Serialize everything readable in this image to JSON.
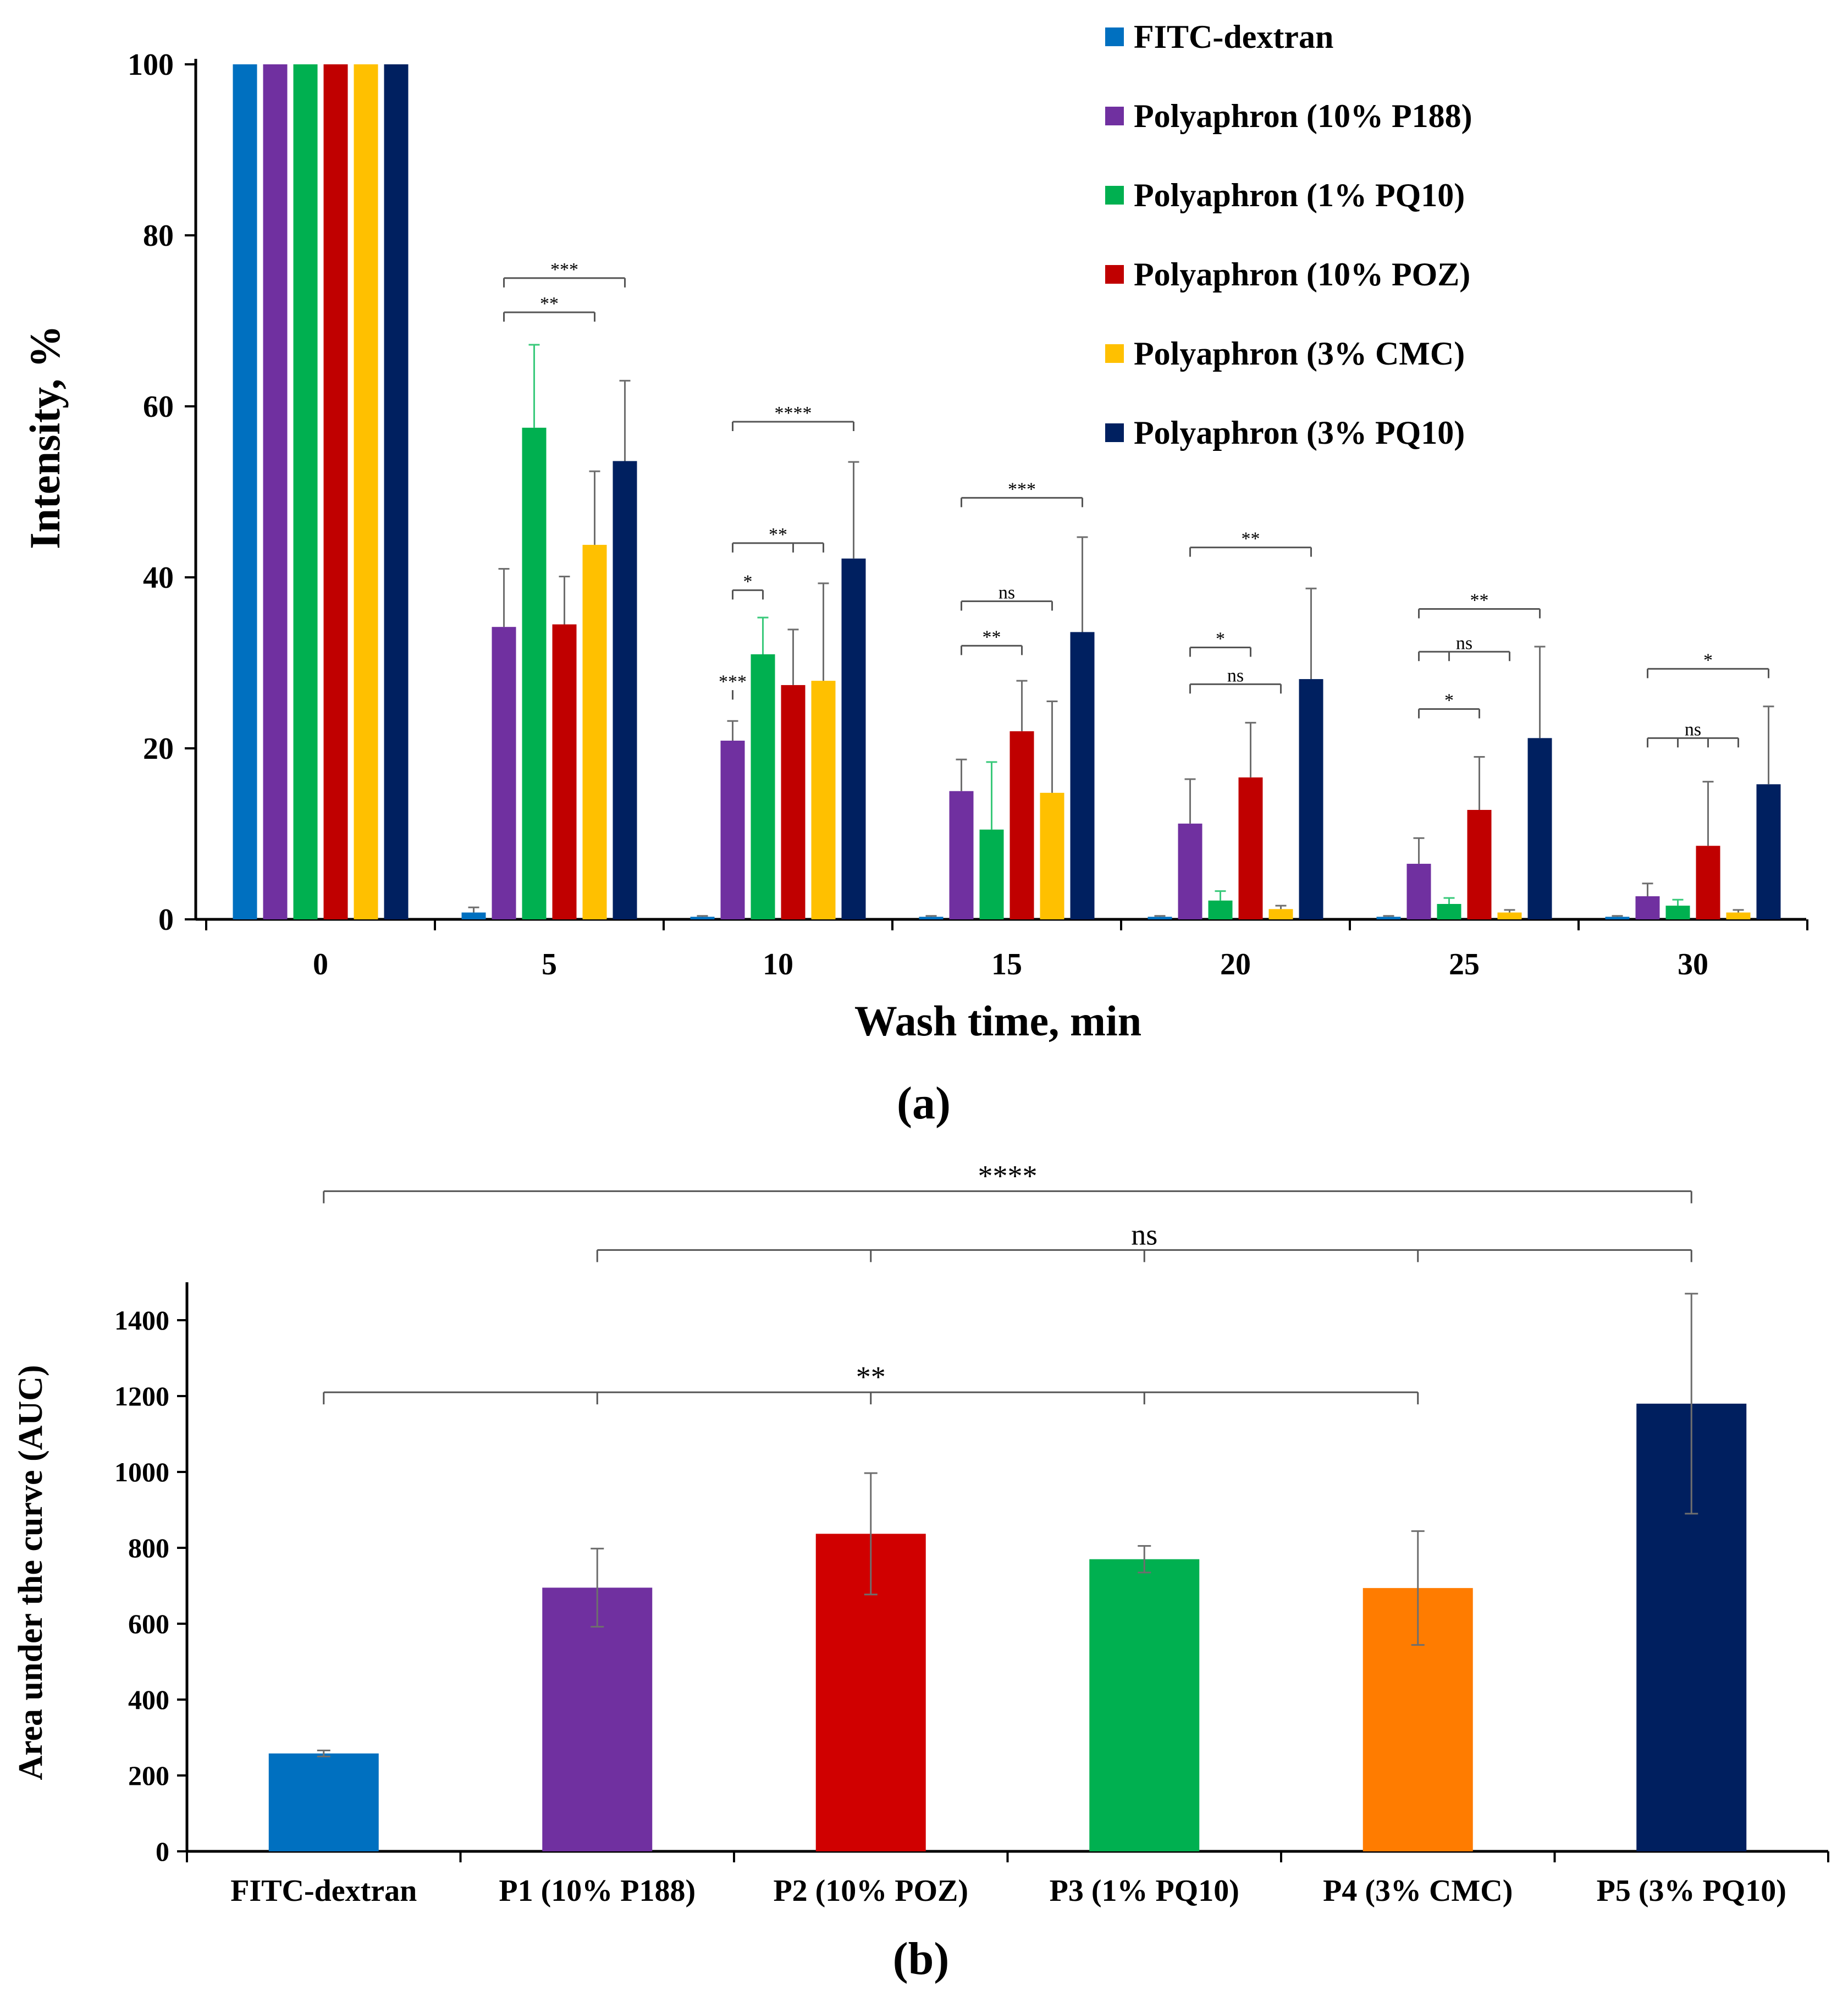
{
  "chart_data": [
    {
      "type": "bar",
      "panel_label": "(a)",
      "xlabel": "Wash time, min",
      "ylabel": "Intensity, %",
      "categories": [
        "0",
        "5",
        "10",
        "15",
        "20",
        "25",
        "30"
      ],
      "ylim": [
        0,
        100
      ],
      "yticks": [
        0,
        20,
        40,
        60,
        80,
        100
      ],
      "legend_position": "top-right",
      "series": [
        {
          "name": "FITC-dextran",
          "color": "#0070c0",
          "values": [
            100,
            0.8,
            0.3,
            0.3,
            0.3,
            0.3,
            0.3
          ],
          "errors": [
            0,
            0.6,
            0.1,
            0.1,
            0.1,
            0.1,
            0.1
          ]
        },
        {
          "name": "Polyaphron (10% P188)",
          "color": "#7030a0",
          "values": [
            100,
            34.2,
            20.9,
            15.0,
            11.2,
            6.5,
            2.7
          ],
          "errors": [
            0,
            6.8,
            2.3,
            3.7,
            5.2,
            3.0,
            1.5
          ]
        },
        {
          "name": "Polyaphron (1% PQ10)",
          "color": "#00b050",
          "values": [
            100,
            57.5,
            31.0,
            10.5,
            2.2,
            1.8,
            1.6
          ],
          "errors": [
            0,
            9.7,
            4.3,
            7.9,
            1.1,
            0.7,
            0.7
          ]
        },
        {
          "name": "Polyaphron (10% POZ)",
          "color": "#c00000",
          "values": [
            100,
            34.5,
            27.4,
            22.0,
            16.6,
            12.8,
            8.6
          ],
          "errors": [
            0,
            5.6,
            6.5,
            5.9,
            6.4,
            6.2,
            7.5
          ]
        },
        {
          "name": "Polyaphron (3% CMC)",
          "color": "#ffc000",
          "values": [
            100,
            43.8,
            27.9,
            14.8,
            1.2,
            0.8,
            0.8
          ],
          "errors": [
            0,
            8.6,
            11.4,
            10.7,
            0.4,
            0.3,
            0.3
          ]
        },
        {
          "name": "Polyaphron (3% PQ10)",
          "color": "#002060",
          "values": [
            100,
            53.6,
            42.2,
            33.6,
            28.1,
            21.2,
            15.8
          ],
          "errors": [
            0,
            9.4,
            11.3,
            11.1,
            10.6,
            10.7,
            9.1
          ]
        }
      ],
      "annotations": [
        {
          "label": "***",
          "group": "5",
          "from": 1,
          "to": [
            5
          ],
          "y": 75
        },
        {
          "label": "**",
          "group": "5",
          "from": 1,
          "to": [
            4
          ],
          "y": 71
        },
        {
          "label": "****",
          "group": "10",
          "from": 1,
          "to": [
            5
          ],
          "y": 58.2
        },
        {
          "label": "**",
          "group": "10",
          "from": 1,
          "to": [
            3,
            4
          ],
          "y": 44
        },
        {
          "label": "*",
          "group": "10",
          "from": 1,
          "to": [
            2
          ],
          "y": 38.5
        },
        {
          "label": "***",
          "group": "10",
          "from": 1,
          "to": [
            1
          ],
          "y": 26.8
        },
        {
          "label": "***",
          "group": "15",
          "from": 1,
          "to": [
            5
          ],
          "y": 49.3
        },
        {
          "label": "ns",
          "group": "15",
          "from": 1,
          "to": [
            4
          ],
          "y": 37.2
        },
        {
          "label": "**",
          "group": "15",
          "from": 1,
          "to": [
            3
          ],
          "y": 32
        },
        {
          "label": "**",
          "group": "20",
          "from": 1,
          "to": [
            5
          ],
          "y": 43.5
        },
        {
          "label": "*",
          "group": "20",
          "from": 1,
          "to": [
            3
          ],
          "y": 31.8
        },
        {
          "label": "ns",
          "group": "20",
          "from": 1,
          "to": [
            4
          ],
          "y": 27.5
        },
        {
          "label": "**",
          "group": "25",
          "from": 1,
          "to": [
            5
          ],
          "y": 36.3
        },
        {
          "label": "ns",
          "group": "25",
          "from": 1,
          "to": [
            2,
            4
          ],
          "y": 31.3
        },
        {
          "label": "*",
          "group": "25",
          "from": 1,
          "to": [
            3
          ],
          "y": 24.6
        },
        {
          "label": "*",
          "group": "30",
          "from": 1,
          "to": [
            5
          ],
          "y": 29.3
        },
        {
          "label": "ns",
          "group": "30",
          "from": 1,
          "to": [
            2,
            3,
            4
          ],
          "y": 21.2
        }
      ]
    },
    {
      "type": "bar",
      "panel_label": "(b)",
      "xlabel": "",
      "ylabel": "Area under the curve (AUC)",
      "categories": [
        "FITC-dextran",
        "P1 (10% P188)",
        "P2 (10% POZ)",
        "P3 (1% PQ10)",
        "P4 (3% CMC)",
        "P5 (3% PQ10)"
      ],
      "values": [
        258,
        695,
        837,
        770,
        694,
        1180
      ],
      "errors": [
        8,
        103,
        160,
        35,
        150,
        290
      ],
      "colors": [
        "#0070c0",
        "#7030a0",
        "#d00000",
        "#00b050",
        "#ff7c00",
        "#001f5f"
      ],
      "ylim": [
        0,
        1500
      ],
      "yticks": [
        0,
        200,
        400,
        600,
        800,
        1000,
        1200,
        1400
      ],
      "annotations": [
        {
          "label": "****",
          "from": 0,
          "to": [
            5
          ],
          "y": 1740
        },
        {
          "label": "ns",
          "from": 1,
          "to": [
            2,
            3,
            4,
            5
          ],
          "y": 1585
        },
        {
          "label": "**",
          "from": 0,
          "to": [
            1,
            2,
            3,
            4
          ],
          "y": 1210
        }
      ]
    }
  ]
}
